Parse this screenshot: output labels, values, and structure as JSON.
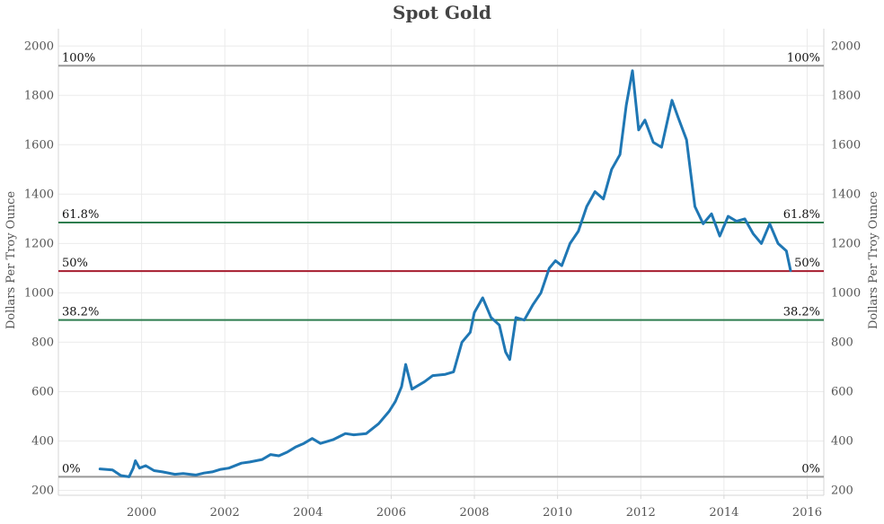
{
  "chart_data": {
    "type": "line",
    "title": "Spot Gold",
    "xlabel": "",
    "ylabel": "Dollars Per Troy Ounce",
    "ylabel_right": "Dollars Per Troy Ounce",
    "xlim": [
      1998.0,
      2016.4
    ],
    "ylim": [
      180,
      2070
    ],
    "x_ticks": [
      2000,
      2002,
      2004,
      2006,
      2008,
      2010,
      2012,
      2014,
      2016
    ],
    "y_ticks": [
      200,
      400,
      600,
      800,
      1000,
      1200,
      1400,
      1600,
      1800,
      2000
    ],
    "grid": true,
    "series": [
      {
        "color": "#1f77b4",
        "x": [
          1999.0,
          1999.3,
          1999.5,
          1999.7,
          1999.8,
          1999.85,
          1999.95,
          2000.1,
          2000.3,
          2000.5,
          2000.8,
          2001.0,
          2001.3,
          2001.5,
          2001.7,
          2001.9,
          2002.1,
          2002.4,
          2002.6,
          2002.9,
          2003.1,
          2003.3,
          2003.5,
          2003.7,
          2003.9,
          2004.1,
          2004.3,
          2004.6,
          2004.9,
          2005.1,
          2005.4,
          2005.7,
          2005.95,
          2006.1,
          2006.25,
          2006.35,
          2006.5,
          2006.8,
          2007.0,
          2007.3,
          2007.5,
          2007.7,
          2007.9,
          2008.0,
          2008.2,
          2008.4,
          2008.6,
          2008.75,
          2008.85,
          2009.0,
          2009.2,
          2009.4,
          2009.6,
          2009.8,
          2009.95,
          2010.1,
          2010.3,
          2010.5,
          2010.7,
          2010.9,
          2011.1,
          2011.3,
          2011.5,
          2011.65,
          2011.8,
          2011.95,
          2012.1,
          2012.3,
          2012.5,
          2012.75,
          2012.9,
          2013.1,
          2013.3,
          2013.5,
          2013.7,
          2013.9,
          2014.1,
          2014.3,
          2014.5,
          2014.7,
          2014.9,
          2015.1,
          2015.3,
          2015.5,
          2015.6
        ],
        "y": [
          287,
          283,
          260,
          255,
          290,
          320,
          290,
          300,
          280,
          275,
          265,
          268,
          262,
          270,
          275,
          285,
          290,
          310,
          315,
          325,
          345,
          340,
          355,
          375,
          390,
          410,
          390,
          405,
          430,
          425,
          430,
          470,
          520,
          560,
          620,
          710,
          610,
          640,
          665,
          670,
          680,
          800,
          840,
          920,
          980,
          900,
          870,
          760,
          730,
          900,
          890,
          950,
          1000,
          1100,
          1130,
          1110,
          1200,
          1250,
          1350,
          1410,
          1380,
          1500,
          1560,
          1760,
          1900,
          1660,
          1700,
          1610,
          1590,
          1780,
          1710,
          1620,
          1350,
          1280,
          1320,
          1230,
          1310,
          1290,
          1300,
          1240,
          1200,
          1280,
          1200,
          1170,
          1090
        ]
      }
    ],
    "reference_lines": [
      {
        "label": "100%",
        "label_right": "100%",
        "value": 1920,
        "color": "#999999"
      },
      {
        "label": "61.8%",
        "label_right": "61.8%",
        "value": 1285,
        "color": "#2e7d4f"
      },
      {
        "label": "50%",
        "label_right": "50%",
        "value": 1088,
        "color": "#a61c2e"
      },
      {
        "label": "38.2%",
        "label_right": "38.2%",
        "value": 890,
        "color": "#2e7d4f"
      },
      {
        "label": "0%",
        "label_right": "0%",
        "value": 255,
        "color": "#999999"
      }
    ]
  }
}
